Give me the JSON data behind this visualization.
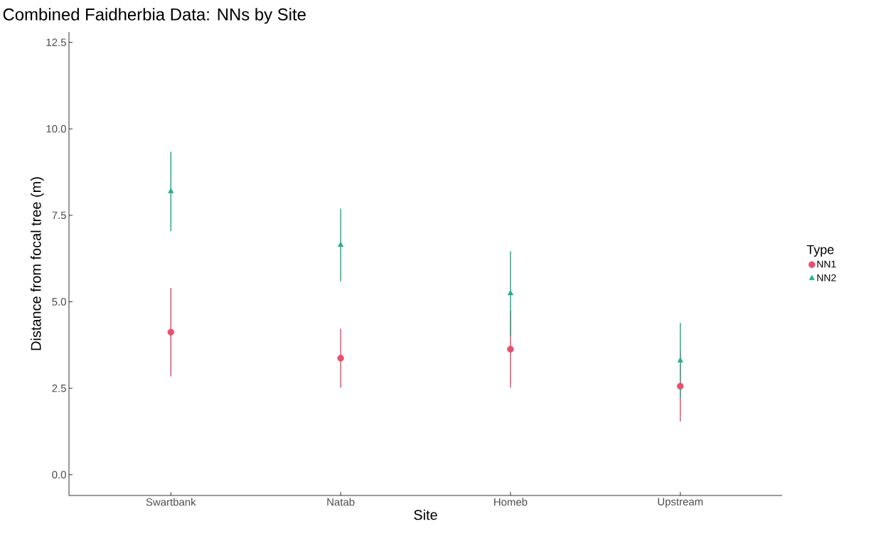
{
  "chart_data": {
    "type": "scatter",
    "title": "Combined Faidherbia Data: NNs by Site",
    "xlabel": "Site",
    "ylabel": "Distance from focal tree (m)",
    "legend_title": "Type",
    "legend": "right",
    "categories": [
      "Swartbank",
      "Natab",
      "Homeb",
      "Upstream"
    ],
    "series": [
      {
        "name": "NN1",
        "color": "#e8506c",
        "marker": "circle",
        "values": [
          4.12,
          3.37,
          3.63,
          2.56
        ],
        "errors": [
          1.28,
          0.85,
          1.11,
          1.02
        ]
      },
      {
        "name": "NN2",
        "color": "#1fb08f",
        "marker": "triangle",
        "values": [
          8.19,
          6.64,
          5.24,
          3.3
        ],
        "errors": [
          1.15,
          1.05,
          1.22,
          1.09
        ]
      }
    ],
    "ylim": [
      -0.6,
      12.8
    ],
    "yticks": [
      {
        "value": 0,
        "label": "0.0"
      },
      {
        "value": 2.5,
        "label": "2.5"
      },
      {
        "value": 5,
        "label": "5.0"
      },
      {
        "value": 7.5,
        "label": "7.5"
      },
      {
        "value": 10,
        "label": "10.0"
      },
      {
        "value": 12.5,
        "label": "12.5"
      }
    ]
  }
}
